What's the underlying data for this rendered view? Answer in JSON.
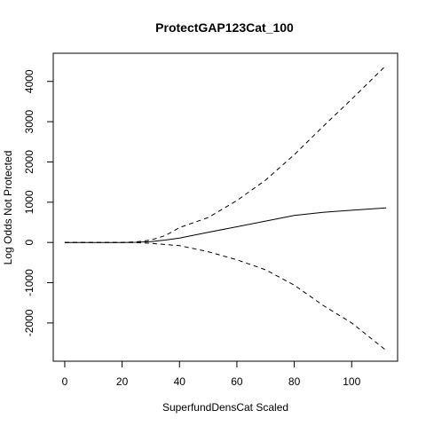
{
  "chart_data": {
    "type": "line",
    "title": "ProtectGAP123Cat_100",
    "xlabel": "SuperfundDensCat Scaled",
    "ylabel": "Log Odds Not Protected",
    "xlim": [
      -4,
      116
    ],
    "ylim": [
      -2950,
      4700
    ],
    "x_ticks": [
      0,
      20,
      40,
      60,
      80,
      100
    ],
    "x_tick_labels": [
      "0",
      "20",
      "40",
      "60",
      "80",
      "100"
    ],
    "y_ticks": [
      -2000,
      -1000,
      0,
      1000,
      2000,
      3000,
      4000
    ],
    "y_tick_labels": [
      "-2000",
      "-1000",
      "0",
      "1000",
      "2000",
      "3000",
      "4000"
    ],
    "grid": false,
    "legend": "none",
    "series": [
      {
        "style": "dashed",
        "x": [
          0,
          20,
          25,
          30,
          35,
          40,
          50,
          60,
          70,
          80,
          90,
          100,
          112
        ],
        "y": [
          0,
          0,
          15,
          60,
          170,
          370,
          620,
          1040,
          1550,
          2180,
          2880,
          3560,
          4400
        ]
      },
      {
        "style": "solid",
        "x": [
          0,
          20,
          25,
          30,
          35,
          40,
          50,
          60,
          70,
          80,
          90,
          100,
          112
        ],
        "y": [
          0,
          0,
          5,
          20,
          60,
          110,
          250,
          390,
          530,
          670,
          750,
          800,
          860
        ]
      },
      {
        "style": "dashed",
        "x": [
          0,
          20,
          25,
          30,
          35,
          40,
          50,
          60,
          70,
          80,
          90,
          100,
          112
        ],
        "y": [
          0,
          0,
          -5,
          -20,
          -50,
          -80,
          -230,
          -430,
          -680,
          -1060,
          -1560,
          -2000,
          -2680
        ]
      }
    ]
  }
}
